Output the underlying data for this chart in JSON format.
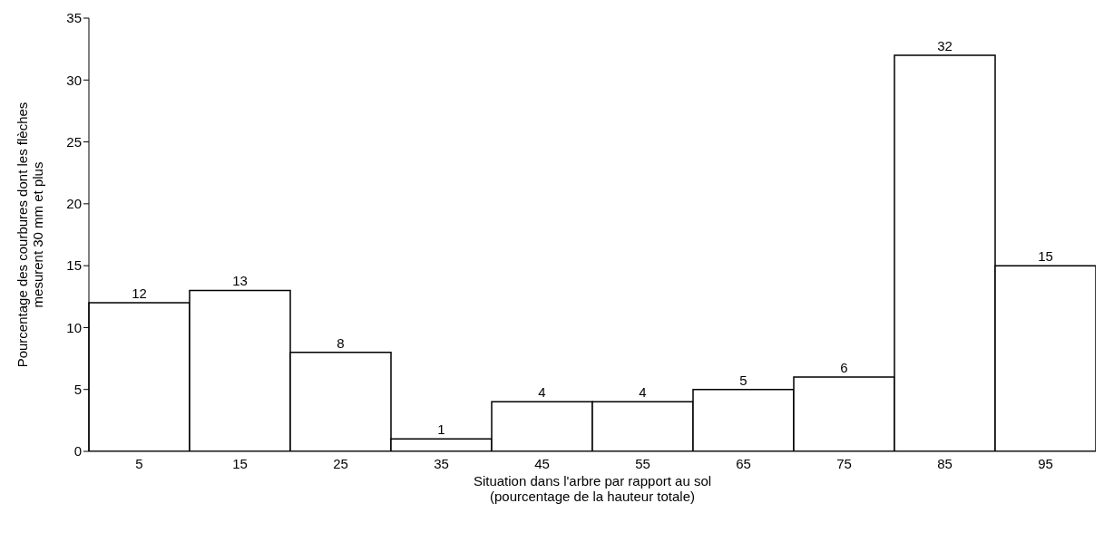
{
  "chart_data": {
    "type": "bar",
    "xlabel": "Situation dans l'arbre par rapport au sol\n(pourcentage de la hauteur totale)",
    "ylabel": "Pourcentage des courbures dont les flèches\nmesurent 30 mm et plus",
    "categories": [
      "5",
      "15",
      "25",
      "35",
      "45",
      "55",
      "65",
      "75",
      "85",
      "95"
    ],
    "values": [
      12,
      13,
      8,
      1,
      4,
      4,
      5,
      6,
      32,
      15
    ],
    "color": "#ffffff",
    "ylim": [
      0,
      35
    ],
    "yticks": [
      0,
      5,
      10,
      15,
      20,
      25,
      30,
      35
    ],
    "grid": false,
    "data_labels": true
  }
}
